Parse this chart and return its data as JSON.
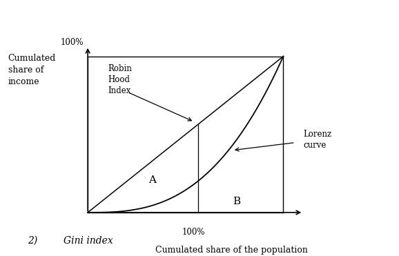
{
  "background_color": "#ffffff",
  "text_color": "#000000",
  "label_100pct_x": "100%",
  "label_100pct_y": "100%",
  "ylabel_lines": "Cumulated\nshare of\nincome",
  "xlabel": "Cumulated share of the population",
  "label_A": "A",
  "label_B": "B",
  "label_lorenz": "Lorenz\ncurve",
  "label_robin": "Robin\nHood\nIndex",
  "label_gini_num": "2)",
  "label_gini_text": "Gini index",
  "lorenz_exponent": 2.8,
  "fontsize_small": 8.5,
  "fontsize_AB": 11,
  "fontsize_100pct": 8.5,
  "fontsize_axis_label": 9,
  "fontsize_gini": 10
}
